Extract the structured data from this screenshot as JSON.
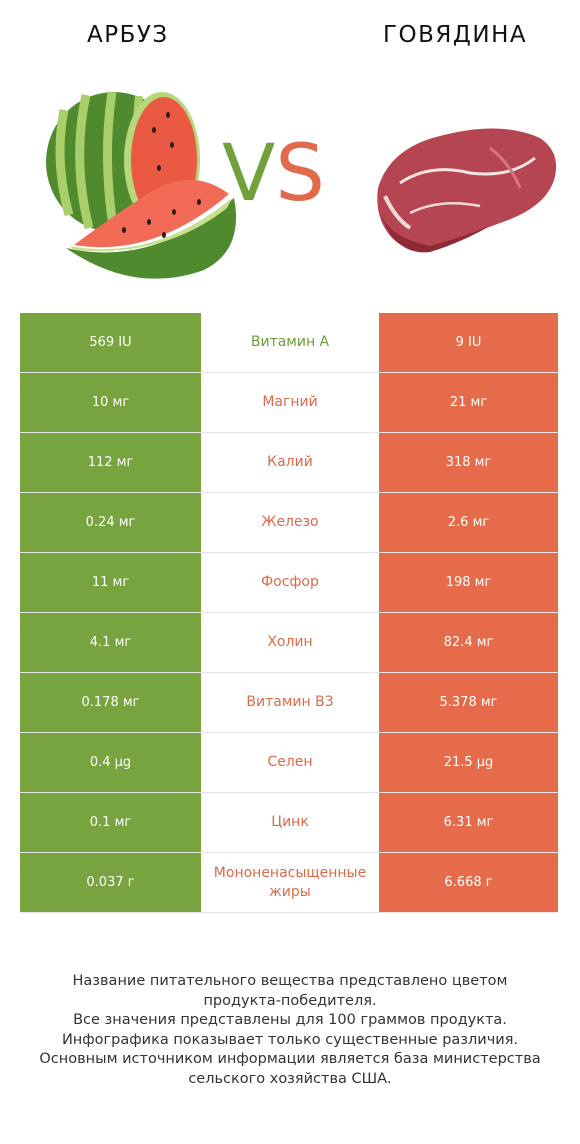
{
  "header": {
    "left_title": "АРБУЗ",
    "right_title": "ГОВЯДИНА",
    "vs_v": "V",
    "vs_s": "S"
  },
  "colors": {
    "left": "#77a43e",
    "right": "#e56b4a"
  },
  "images": {
    "left": "watermelon",
    "right": "beef-steak"
  },
  "rows": [
    {
      "left": "569 IU",
      "nutrient": "Витамин A",
      "right": "9 IU",
      "winner": "left"
    },
    {
      "left": "10 мг",
      "nutrient": "Магний",
      "right": "21 мг",
      "winner": "right"
    },
    {
      "left": "112 мг",
      "nutrient": "Калий",
      "right": "318 мг",
      "winner": "right"
    },
    {
      "left": "0.24 мг",
      "nutrient": "Железо",
      "right": "2.6 мг",
      "winner": "right"
    },
    {
      "left": "11 мг",
      "nutrient": "Фосфор",
      "right": "198 мг",
      "winner": "right"
    },
    {
      "left": "4.1 мг",
      "nutrient": "Холин",
      "right": "82.4 мг",
      "winner": "right"
    },
    {
      "left": "0.178 мг",
      "nutrient": "Витамин B3",
      "right": "5.378 мг",
      "winner": "right"
    },
    {
      "left": "0.4 µg",
      "nutrient": "Селен",
      "right": "21.5 µg",
      "winner": "right"
    },
    {
      "left": "0.1 мг",
      "nutrient": "Цинк",
      "right": "6.31 мг",
      "winner": "right"
    },
    {
      "left": "0.037 г",
      "nutrient": "Мононенасыщенные жиры",
      "right": "6.668 г",
      "winner": "right"
    }
  ],
  "footer": {
    "line1": "Название питательного вещества представлено цветом",
    "line2": "продукта-победителя.",
    "line3": "Все значения представлены для 100 граммов продукта.",
    "line4": "Инфографика показывает только существенные различия.",
    "line5": "Основным источником информации является база министерства",
    "line6": "сельского хозяйства США."
  }
}
